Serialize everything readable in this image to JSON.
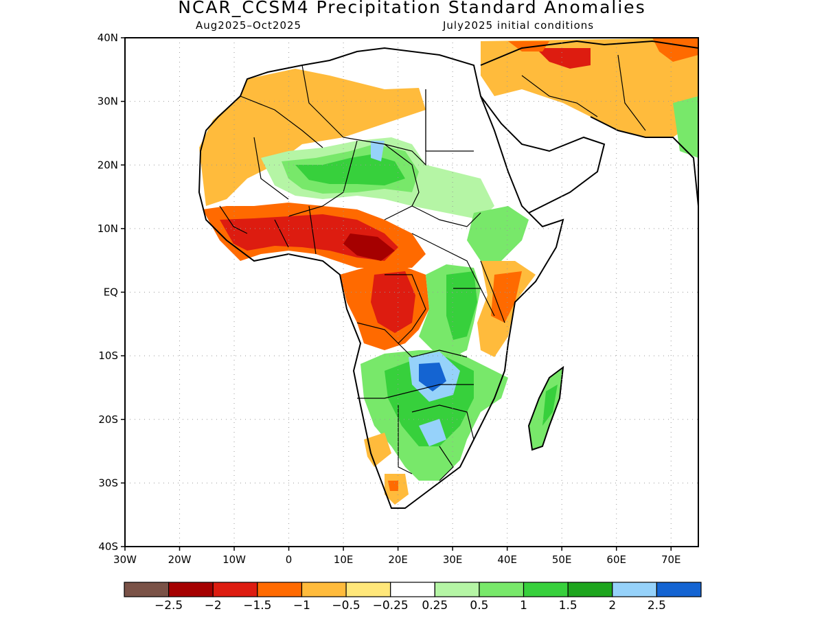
{
  "title": "NCAR_CCSM4 Precipitation Standard Anomalies",
  "subtitle_left": "Aug2025–Oct2025",
  "subtitle_right": "July2025 initial conditions",
  "map": {
    "lat_labels": [
      "40N",
      "30N",
      "20N",
      "10N",
      "EQ",
      "10S",
      "20S",
      "30S",
      "40S"
    ],
    "lat_values": [
      40,
      30,
      20,
      10,
      0,
      -10,
      -20,
      -30,
      -40
    ],
    "lon_labels": [
      "30W",
      "20W",
      "10W",
      "0",
      "10E",
      "20E",
      "30E",
      "40E",
      "50E",
      "60E",
      "70E"
    ],
    "lon_values": [
      -30,
      -20,
      -10,
      0,
      10,
      20,
      30,
      40,
      50,
      60,
      70
    ],
    "lon_range": [
      -30,
      75
    ],
    "lat_range": [
      -40,
      40
    ],
    "grid": "dotted"
  },
  "legend": {
    "colors": [
      "#7a5247",
      "#a50000",
      "#dd1c10",
      "#ff6a00",
      "#ffbb3c",
      "#ffe77a",
      "#ffffff",
      "#b5f5a5",
      "#78e86a",
      "#37d03c",
      "#1ea51e",
      "#96d2fa",
      "#1464d2"
    ],
    "labels": [
      "−2.5",
      "−2",
      "−1.5",
      "−1",
      "−0.5",
      "−0.25",
      "0.25",
      "0.5",
      "1",
      "1.5",
      "2",
      "2.5"
    ]
  }
}
